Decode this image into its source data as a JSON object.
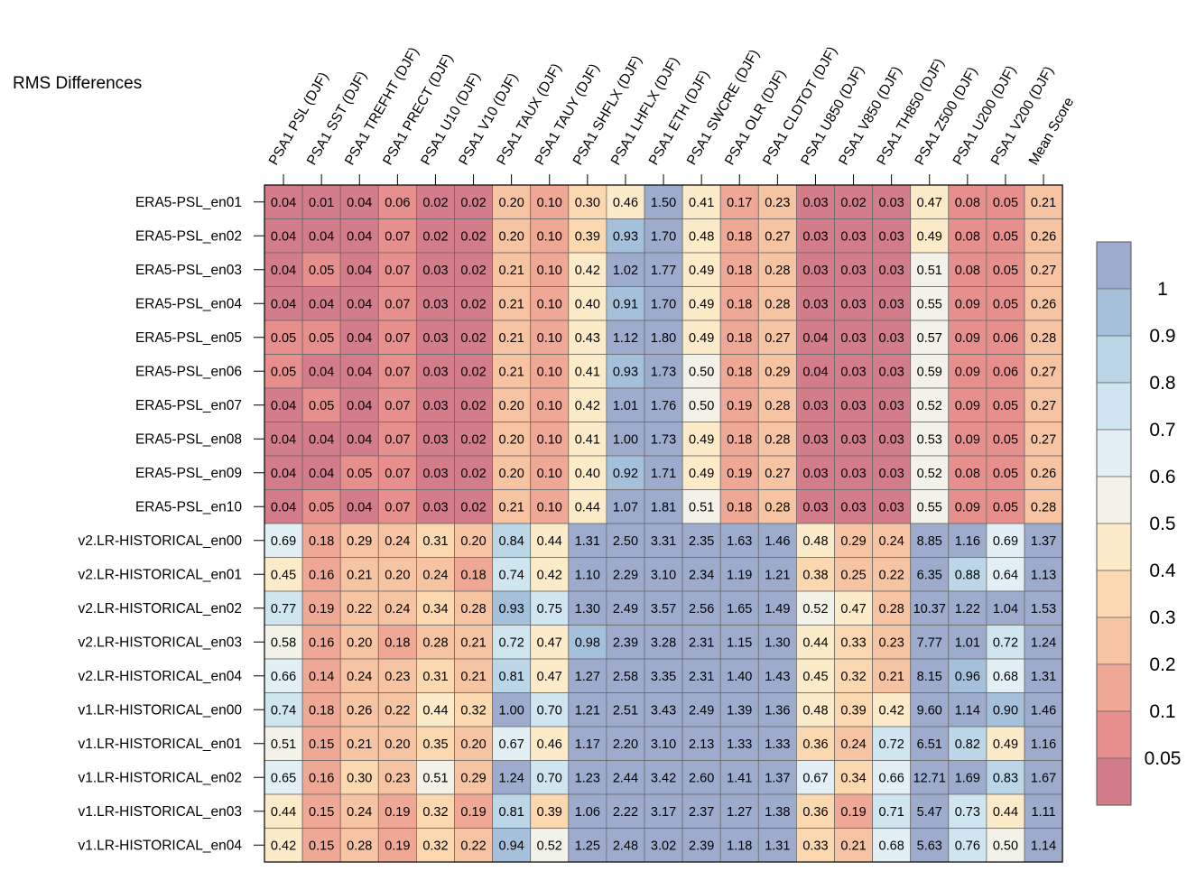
{
  "chart_data": {
    "type": "heatmap",
    "title": "RMS Differences",
    "columns": [
      "PSA1 PSL (DJF)",
      "PSA1 SST (DJF)",
      "PSA1 TREFHT (DJF)",
      "PSA1 PRECT (DJF)",
      "PSA1 U10 (DJF)",
      "PSA1 V10 (DJF)",
      "PSA1 TAUX (DJF)",
      "PSA1 TAUY (DJF)",
      "PSA1 SHFLX (DJF)",
      "PSA1 LHFLX (DJF)",
      "PSA1 ETH (DJF)",
      "PSA1 SWCRE (DJF)",
      "PSA1 OLR (DJF)",
      "PSA1 CLDTOT (DJF)",
      "PSA1 U850 (DJF)",
      "PSA1 V850 (DJF)",
      "PSA1 TH850 (DJF)",
      "PSA1 Z500 (DJF)",
      "PSA1 U200 (DJF)",
      "PSA1 V200 (DJF)",
      "Mean Score"
    ],
    "rows": [
      "ERA5-PSL_en01",
      "ERA5-PSL_en02",
      "ERA5-PSL_en03",
      "ERA5-PSL_en04",
      "ERA5-PSL_en05",
      "ERA5-PSL_en06",
      "ERA5-PSL_en07",
      "ERA5-PSL_en08",
      "ERA5-PSL_en09",
      "ERA5-PSL_en10",
      "v2.LR-HISTORICAL_en00",
      "v2.LR-HISTORICAL_en01",
      "v2.LR-HISTORICAL_en02",
      "v2.LR-HISTORICAL_en03",
      "v2.LR-HISTORICAL_en04",
      "v1.LR-HISTORICAL_en00",
      "v1.LR-HISTORICAL_en01",
      "v1.LR-HISTORICAL_en02",
      "v1.LR-HISTORICAL_en03",
      "v1.LR-HISTORICAL_en04"
    ],
    "values": [
      [
        "0.04",
        "0.01",
        "0.04",
        "0.06",
        "0.02",
        "0.02",
        "0.20",
        "0.10",
        "0.30",
        "0.46",
        "1.50",
        "0.41",
        "0.17",
        "0.23",
        "0.03",
        "0.02",
        "0.03",
        "0.47",
        "0.08",
        "0.05",
        "0.21"
      ],
      [
        "0.04",
        "0.04",
        "0.04",
        "0.07",
        "0.02",
        "0.02",
        "0.20",
        "0.10",
        "0.39",
        "0.93",
        "1.70",
        "0.48",
        "0.18",
        "0.27",
        "0.03",
        "0.03",
        "0.03",
        "0.49",
        "0.08",
        "0.05",
        "0.26"
      ],
      [
        "0.04",
        "0.05",
        "0.04",
        "0.07",
        "0.03",
        "0.02",
        "0.21",
        "0.10",
        "0.42",
        "1.02",
        "1.77",
        "0.49",
        "0.18",
        "0.28",
        "0.03",
        "0.03",
        "0.03",
        "0.51",
        "0.08",
        "0.05",
        "0.27"
      ],
      [
        "0.04",
        "0.04",
        "0.04",
        "0.07",
        "0.03",
        "0.02",
        "0.21",
        "0.10",
        "0.40",
        "0.91",
        "1.70",
        "0.49",
        "0.18",
        "0.28",
        "0.03",
        "0.03",
        "0.03",
        "0.55",
        "0.09",
        "0.05",
        "0.26"
      ],
      [
        "0.05",
        "0.05",
        "0.04",
        "0.07",
        "0.03",
        "0.02",
        "0.21",
        "0.10",
        "0.43",
        "1.12",
        "1.80",
        "0.49",
        "0.18",
        "0.27",
        "0.04",
        "0.03",
        "0.03",
        "0.57",
        "0.09",
        "0.06",
        "0.28"
      ],
      [
        "0.05",
        "0.04",
        "0.04",
        "0.07",
        "0.03",
        "0.02",
        "0.21",
        "0.10",
        "0.41",
        "0.93",
        "1.73",
        "0.50",
        "0.18",
        "0.29",
        "0.04",
        "0.03",
        "0.03",
        "0.59",
        "0.09",
        "0.06",
        "0.27"
      ],
      [
        "0.04",
        "0.05",
        "0.04",
        "0.07",
        "0.03",
        "0.02",
        "0.20",
        "0.10",
        "0.42",
        "1.01",
        "1.76",
        "0.50",
        "0.19",
        "0.28",
        "0.03",
        "0.03",
        "0.03",
        "0.52",
        "0.09",
        "0.05",
        "0.27"
      ],
      [
        "0.04",
        "0.04",
        "0.04",
        "0.07",
        "0.03",
        "0.02",
        "0.20",
        "0.10",
        "0.41",
        "1.00",
        "1.73",
        "0.49",
        "0.18",
        "0.28",
        "0.03",
        "0.03",
        "0.03",
        "0.53",
        "0.09",
        "0.05",
        "0.27"
      ],
      [
        "0.04",
        "0.04",
        "0.05",
        "0.07",
        "0.03",
        "0.02",
        "0.20",
        "0.10",
        "0.40",
        "0.92",
        "1.71",
        "0.49",
        "0.19",
        "0.27",
        "0.03",
        "0.03",
        "0.03",
        "0.52",
        "0.08",
        "0.05",
        "0.26"
      ],
      [
        "0.04",
        "0.05",
        "0.04",
        "0.07",
        "0.03",
        "0.02",
        "0.21",
        "0.10",
        "0.44",
        "1.07",
        "1.81",
        "0.51",
        "0.18",
        "0.28",
        "0.03",
        "0.03",
        "0.03",
        "0.55",
        "0.09",
        "0.05",
        "0.28"
      ],
      [
        "0.69",
        "0.18",
        "0.29",
        "0.24",
        "0.31",
        "0.20",
        "0.84",
        "0.44",
        "1.31",
        "2.50",
        "3.31",
        "2.35",
        "1.63",
        "1.46",
        "0.48",
        "0.29",
        "0.24",
        "8.85",
        "1.16",
        "0.69",
        "1.37"
      ],
      [
        "0.45",
        "0.16",
        "0.21",
        "0.20",
        "0.24",
        "0.18",
        "0.74",
        "0.42",
        "1.10",
        "2.29",
        "3.10",
        "2.34",
        "1.19",
        "1.21",
        "0.38",
        "0.25",
        "0.22",
        "6.35",
        "0.88",
        "0.64",
        "1.13"
      ],
      [
        "0.77",
        "0.19",
        "0.22",
        "0.24",
        "0.34",
        "0.28",
        "0.93",
        "0.75",
        "1.30",
        "2.49",
        "3.57",
        "2.56",
        "1.65",
        "1.49",
        "0.52",
        "0.47",
        "0.28",
        "10.37",
        "1.22",
        "1.04",
        "1.53"
      ],
      [
        "0.58",
        "0.16",
        "0.20",
        "0.18",
        "0.28",
        "0.21",
        "0.72",
        "0.47",
        "0.98",
        "2.39",
        "3.28",
        "2.31",
        "1.15",
        "1.30",
        "0.44",
        "0.33",
        "0.23",
        "7.77",
        "1.01",
        "0.72",
        "1.24"
      ],
      [
        "0.66",
        "0.14",
        "0.24",
        "0.23",
        "0.31",
        "0.21",
        "0.81",
        "0.47",
        "1.27",
        "2.58",
        "3.35",
        "2.31",
        "1.40",
        "1.43",
        "0.45",
        "0.32",
        "0.21",
        "8.15",
        "0.96",
        "0.68",
        "1.31"
      ],
      [
        "0.74",
        "0.18",
        "0.26",
        "0.22",
        "0.44",
        "0.32",
        "1.00",
        "0.70",
        "1.21",
        "2.51",
        "3.43",
        "2.49",
        "1.39",
        "1.36",
        "0.48",
        "0.39",
        "0.42",
        "9.60",
        "1.14",
        "0.90",
        "1.46"
      ],
      [
        "0.51",
        "0.15",
        "0.21",
        "0.20",
        "0.35",
        "0.20",
        "0.67",
        "0.46",
        "1.17",
        "2.20",
        "3.10",
        "2.13",
        "1.33",
        "1.33",
        "0.36",
        "0.24",
        "0.72",
        "6.51",
        "0.82",
        "0.49",
        "1.16"
      ],
      [
        "0.65",
        "0.16",
        "0.30",
        "0.23",
        "0.51",
        "0.29",
        "1.24",
        "0.70",
        "1.23",
        "2.44",
        "3.42",
        "2.60",
        "1.41",
        "1.37",
        "0.67",
        "0.34",
        "0.66",
        "12.71",
        "1.69",
        "0.83",
        "1.67"
      ],
      [
        "0.44",
        "0.15",
        "0.24",
        "0.19",
        "0.32",
        "0.19",
        "0.81",
        "0.39",
        "1.06",
        "2.22",
        "3.17",
        "2.37",
        "1.27",
        "1.38",
        "0.36",
        "0.19",
        "0.71",
        "5.47",
        "0.73",
        "0.44",
        "1.11"
      ],
      [
        "0.42",
        "0.15",
        "0.28",
        "0.19",
        "0.32",
        "0.22",
        "0.94",
        "0.52",
        "1.25",
        "2.48",
        "3.02",
        "2.39",
        "1.18",
        "1.31",
        "0.33",
        "0.21",
        "0.68",
        "5.63",
        "0.76",
        "0.50",
        "1.14"
      ]
    ],
    "legend": {
      "labels": [
        "1",
        "0.9",
        "0.8",
        "0.7",
        "0.6",
        "0.5",
        "0.4",
        "0.3",
        "0.2",
        "0.1",
        "0.05"
      ],
      "colors_top_to_bottom": [
        "#9daccd",
        "#a5c0da",
        "#bad6e7",
        "#cfe5ef",
        "#e2f0f5",
        "#f2f2e8",
        "#fcebc8",
        "#fbd8b0",
        "#f6c4a2",
        "#f0a896",
        "#e78f8c",
        "#d37c8a"
      ],
      "placement": "right"
    }
  }
}
